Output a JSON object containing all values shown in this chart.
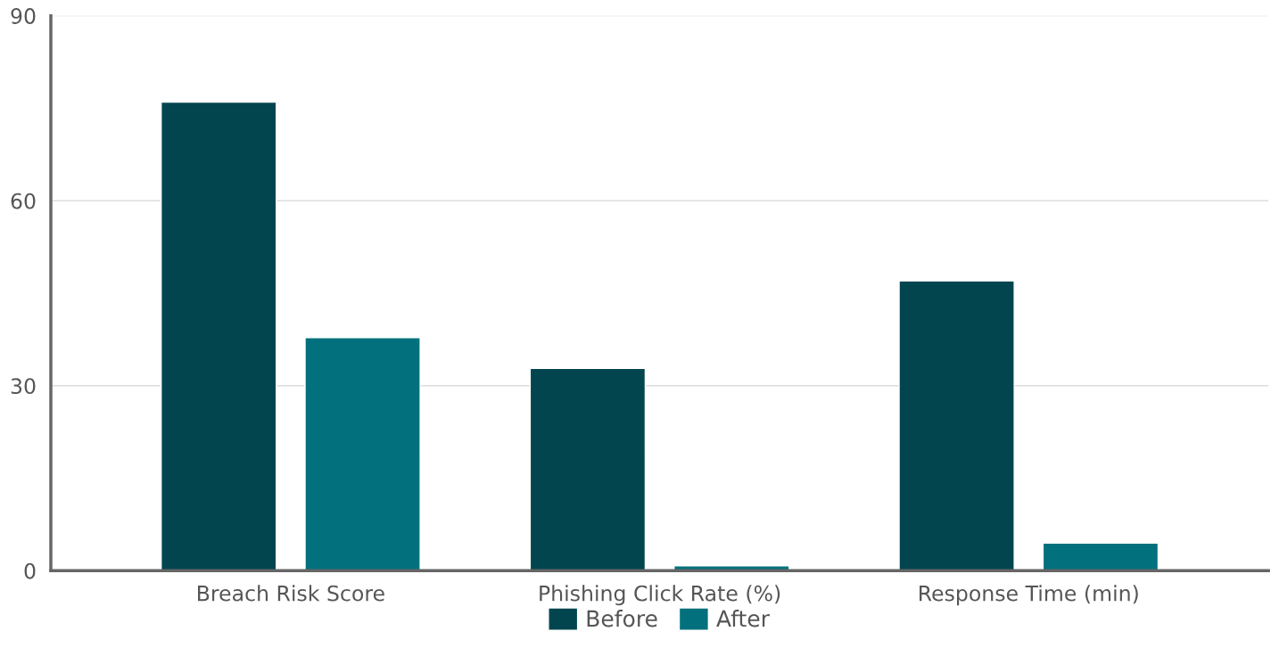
{
  "chart_data": {
    "type": "bar",
    "categories": [
      "Breach Risk Score",
      "Phishing Click Rate (%)",
      "Response Time (min)"
    ],
    "series": [
      {
        "name": "Before",
        "color": "#02454f",
        "values": [
          76,
          32.8,
          47
        ]
      },
      {
        "name": "After",
        "color": "#02717d",
        "values": [
          37.8,
          0.8,
          4.5
        ]
      }
    ],
    "ylim": [
      0,
      90
    ],
    "yticks": [
      0,
      30,
      60,
      90
    ],
    "grid": "y",
    "legend": "bottom"
  }
}
